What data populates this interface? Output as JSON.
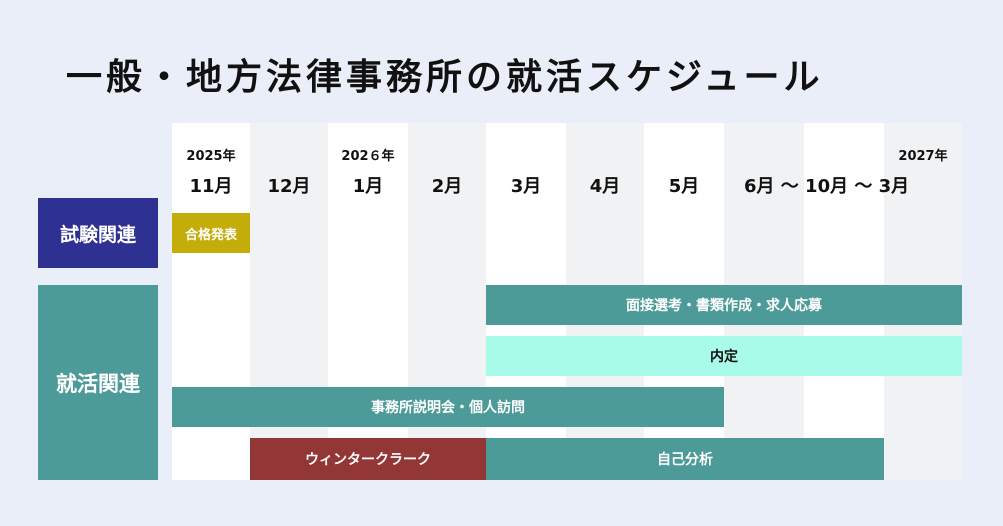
{
  "title": "一般・地方法律事務所の就活スケジュール",
  "header": {
    "years": {
      "y2025": "2025年",
      "y2026": "202６年",
      "y2027": "2027年"
    },
    "months": [
      "11月",
      "12月",
      "1月",
      "2月",
      "3月",
      "4月",
      "5月",
      "6月 〜 10月 〜 3月"
    ]
  },
  "categories": {
    "exam": "試験関連",
    "job": "就活関連"
  },
  "bars": {
    "gokaku": "合格発表",
    "mensetsu": "面接選考・書類作成・求人応募",
    "naitei": "内定",
    "setsumeikai": "事務所説明会・個人訪問",
    "winter": "ウィンタークラーク",
    "jiko": "自己分析"
  },
  "colors": {
    "background": "#e9eef8",
    "exam": "#2e3192",
    "teal": "#4d9b98",
    "mint": "#a9fbe9",
    "olive": "#c4ad0a",
    "maroon": "#923636"
  }
}
